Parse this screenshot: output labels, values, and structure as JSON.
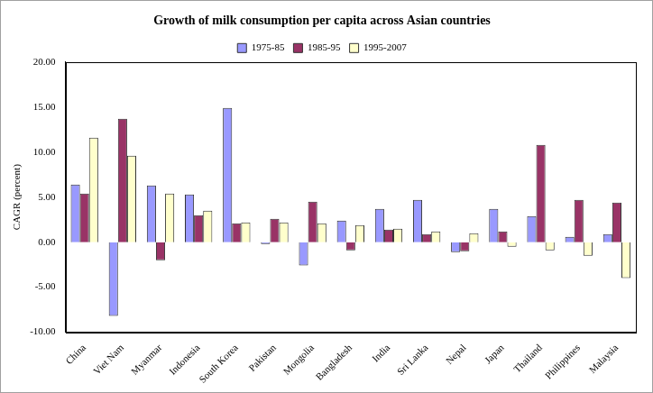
{
  "chart_data": {
    "type": "bar",
    "title": "Growth of milk consumption per capita across Asian countries",
    "y_label": "CAGR (percent)",
    "categories": [
      "China",
      "Viet Nam",
      "Myanmar",
      "Indonesia",
      "South Korea",
      "Pakistan",
      "Mongolia",
      "Bangladesh",
      "India",
      "Sri Lanka",
      "Nepal",
      "Japan",
      "Thailand",
      "Philippines",
      "Malaysia"
    ],
    "series": [
      {
        "name": "1975-85",
        "color": "#9999ff",
        "values": [
          6.4,
          -8.2,
          6.3,
          5.3,
          14.9,
          -0.2,
          -2.6,
          2.4,
          3.7,
          4.7,
          -1.1,
          3.7,
          2.9,
          0.6,
          0.9
        ]
      },
      {
        "name": "1985-95",
        "color": "#993366",
        "values": [
          5.4,
          13.7,
          -2.0,
          3.0,
          2.1,
          2.6,
          4.5,
          -0.9,
          1.4,
          0.9,
          -1.0,
          1.2,
          10.8,
          4.7,
          4.4
        ]
      },
      {
        "name": "1995-2007",
        "color": "#ffffcc",
        "values": [
          11.6,
          9.6,
          5.4,
          3.5,
          2.2,
          2.2,
          2.1,
          1.9,
          1.5,
          1.2,
          1.0,
          -0.5,
          -0.9,
          -1.5,
          -4.0
        ]
      }
    ],
    "ylim": [
      -10,
      20
    ],
    "yticks": [
      {
        "value": -10,
        "label": "-10.00"
      },
      {
        "value": -5,
        "label": "-5.00"
      },
      {
        "value": 0,
        "label": "0.00"
      },
      {
        "value": 5,
        "label": "5.00"
      },
      {
        "value": 10,
        "label": "10.00"
      },
      {
        "value": 15,
        "label": "15.00"
      },
      {
        "value": 20,
        "label": "20.00"
      }
    ],
    "grid": false,
    "legend": "top"
  }
}
